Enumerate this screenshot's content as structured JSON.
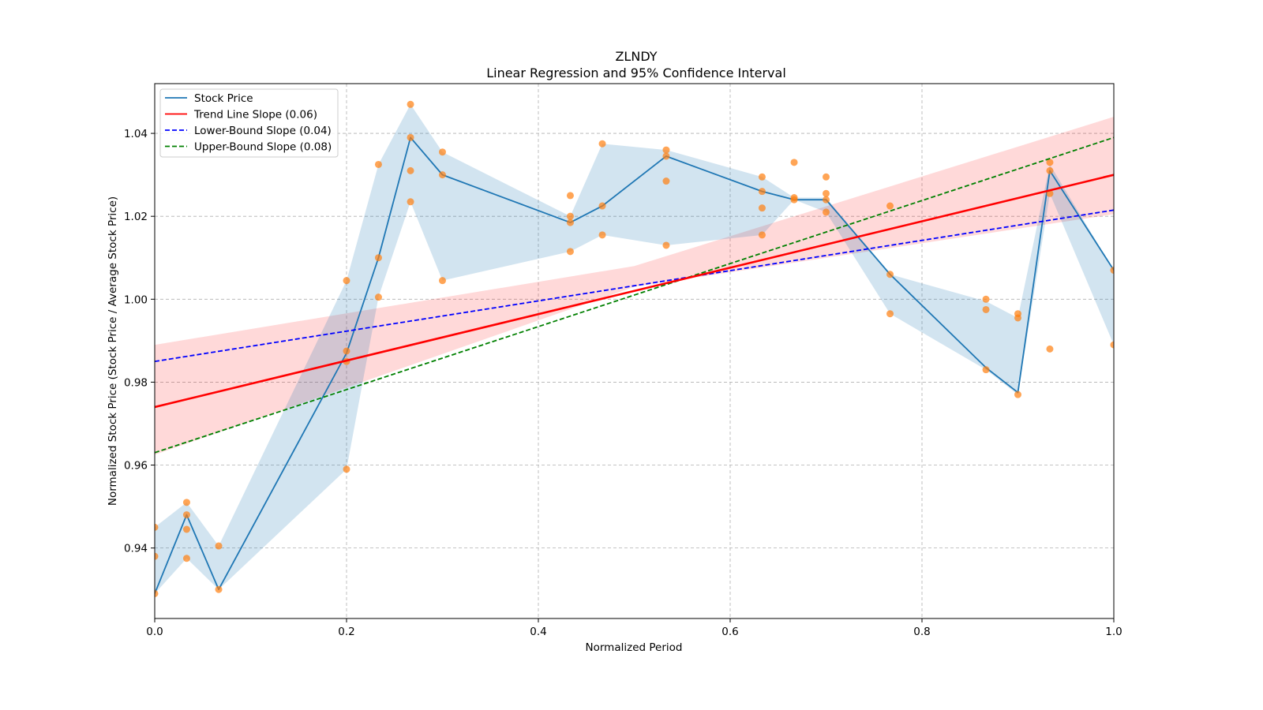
{
  "chart_data": {
    "type": "line",
    "title": "ZLNDY",
    "subtitle": "Linear Regression and 95% Confidence Interval",
    "xlabel": "Normalized Period",
    "ylabel": "Normalized Stock Price (Stock Price / Average Stock Price)",
    "xlim": [
      0.0,
      1.0
    ],
    "ylim": [
      0.923,
      1.052
    ],
    "xticks": [
      0.0,
      0.2,
      0.4,
      0.6,
      0.8,
      1.0
    ],
    "xtick_labels": [
      "0.0",
      "0.2",
      "0.4",
      "0.6",
      "0.8",
      "1.0"
    ],
    "yticks": [
      0.94,
      0.96,
      0.98,
      1.0,
      1.02,
      1.04
    ],
    "ytick_labels": [
      "0.94",
      "0.96",
      "0.98",
      "1.00",
      "1.02",
      "1.04"
    ],
    "grid": true,
    "legend_position": "top-left",
    "legend": [
      {
        "label": "Stock Price",
        "color": "#1f77b4",
        "style": "solid"
      },
      {
        "label": "Trend Line Slope (0.06)",
        "color": "#ff0000",
        "style": "solid"
      },
      {
        "label": "Lower-Bound Slope (0.04)",
        "color": "#0000ff",
        "style": "dashed"
      },
      {
        "label": "Upper-Bound Slope (0.08)",
        "color": "#008000",
        "style": "dashed"
      }
    ],
    "stock_price": {
      "x": [
        0.0,
        0.0333,
        0.0667,
        0.2,
        0.2333,
        0.2667,
        0.3,
        0.4333,
        0.4667,
        0.5333,
        0.6333,
        0.6667,
        0.7,
        0.7667,
        0.8667,
        0.9,
        0.9333,
        1.0
      ],
      "y": [
        0.929,
        0.948,
        0.93,
        0.987,
        1.01,
        1.039,
        1.03,
        1.0185,
        1.0225,
        1.0345,
        1.026,
        1.024,
        1.024,
        1.006,
        0.9835,
        0.9775,
        1.031,
        1.007
      ]
    },
    "stock_band": {
      "upper": [
        0.945,
        0.951,
        0.9405,
        1.0045,
        1.0325,
        1.047,
        1.0355,
        1.02,
        1.0375,
        1.036,
        1.0295,
        1.0245,
        1.0245,
        1.006,
        0.9995,
        0.9955,
        1.0325,
        1.007
      ],
      "lower": [
        0.929,
        0.9375,
        0.93,
        0.959,
        1.0005,
        1.0235,
        1.0045,
        1.0115,
        1.0155,
        1.013,
        1.0155,
        1.024,
        1.021,
        0.9965,
        0.983,
        0.977,
        1.0255,
        0.989
      ]
    },
    "scatter": {
      "x": [
        0.0,
        0.0,
        0.0,
        0.0333,
        0.0333,
        0.0333,
        0.0333,
        0.0667,
        0.0667,
        0.2,
        0.2,
        0.2,
        0.2,
        0.2333,
        0.2333,
        0.2333,
        0.2667,
        0.2667,
        0.2667,
        0.2667,
        0.3,
        0.3,
        0.3,
        0.4333,
        0.4333,
        0.4333,
        0.4333,
        0.4667,
        0.4667,
        0.4667,
        0.5333,
        0.5333,
        0.5333,
        0.5333,
        0.6333,
        0.6333,
        0.6333,
        0.6333,
        0.6667,
        0.6667,
        0.6667,
        0.7,
        0.7,
        0.7,
        0.7,
        0.7667,
        0.7667,
        0.7667,
        0.8667,
        0.8667,
        0.8667,
        0.9,
        0.9,
        0.9,
        0.9333,
        0.9333,
        0.9333,
        0.9333,
        1.0,
        1.0
      ],
      "y": [
        0.945,
        0.938,
        0.929,
        0.951,
        0.948,
        0.9445,
        0.9375,
        0.9405,
        0.93,
        1.0045,
        0.9875,
        0.985,
        0.959,
        1.0325,
        1.01,
        1.0005,
        1.047,
        1.039,
        1.031,
        1.0235,
        1.0355,
        1.03,
        1.0045,
        1.025,
        1.02,
        1.0185,
        1.0115,
        1.0375,
        1.0225,
        1.0155,
        1.036,
        1.0345,
        1.0285,
        1.013,
        1.0295,
        1.026,
        1.022,
        1.0155,
        1.033,
        1.0245,
        1.024,
        1.0295,
        1.0255,
        1.024,
        1.021,
        1.0225,
        1.006,
        0.9965,
        1.0,
        0.9975,
        0.983,
        0.9965,
        0.9955,
        0.977,
        1.033,
        1.031,
        1.0255,
        0.988,
        1.007,
        0.989
      ]
    },
    "trend_line": {
      "x": [
        0.0,
        1.0
      ],
      "y": [
        0.974,
        1.03
      ]
    },
    "lower_bound_line": {
      "x": [
        0.0,
        1.0
      ],
      "y": [
        0.985,
        1.0215
      ]
    },
    "upper_bound_line": {
      "x": [
        0.0,
        1.0
      ],
      "y": [
        0.963,
        1.039
      ]
    },
    "confidence_interval": {
      "x": [
        0.0,
        0.5,
        1.0
      ],
      "upper": [
        0.989,
        1.008,
        1.044
      ],
      "lower": [
        0.9625,
        1.003,
        1.0205
      ]
    }
  }
}
